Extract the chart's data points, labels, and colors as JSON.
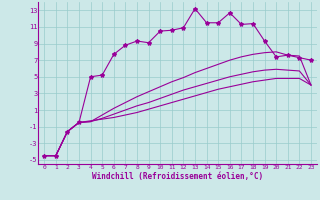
{
  "xlabel": "Windchill (Refroidissement éolien,°C)",
  "ylim": [
    -5.5,
    14
  ],
  "xlim": [
    -0.5,
    23.5
  ],
  "yticks": [
    -5,
    -3,
    -1,
    1,
    3,
    5,
    7,
    9,
    11,
    13
  ],
  "xticks": [
    0,
    1,
    2,
    3,
    4,
    5,
    6,
    7,
    8,
    9,
    10,
    11,
    12,
    13,
    14,
    15,
    16,
    17,
    18,
    19,
    20,
    21,
    22,
    23
  ],
  "bg_color": "#cce8e8",
  "line_color": "#990099",
  "grid_color": "#99cccc",
  "line1_x": [
    0,
    1,
    2,
    3,
    4,
    5,
    6,
    7,
    8,
    9,
    10,
    11,
    12,
    13,
    14,
    15,
    16,
    17,
    18,
    19,
    20,
    21,
    22,
    23
  ],
  "line1_y": [
    -4.5,
    -4.5,
    -1.6,
    -0.5,
    5.0,
    5.2,
    7.7,
    8.8,
    9.3,
    9.1,
    10.5,
    10.6,
    10.9,
    13.2,
    11.5,
    11.5,
    12.7,
    11.3,
    11.4,
    9.3,
    7.4,
    7.6,
    7.3,
    7.0
  ],
  "line2_x": [
    0,
    1,
    2,
    3,
    4,
    5,
    6,
    7,
    8,
    9,
    10,
    11,
    12,
    13,
    14,
    15,
    16,
    17,
    18,
    19,
    20,
    21,
    22,
    23
  ],
  "line2_y": [
    -4.5,
    -4.5,
    -1.6,
    -0.5,
    -0.4,
    0.4,
    1.2,
    1.9,
    2.6,
    3.2,
    3.8,
    4.4,
    4.9,
    5.5,
    6.0,
    6.5,
    7.0,
    7.4,
    7.7,
    7.9,
    8.0,
    7.6,
    7.5,
    4.0
  ],
  "line3_x": [
    0,
    1,
    2,
    3,
    4,
    5,
    6,
    7,
    8,
    9,
    10,
    11,
    12,
    13,
    14,
    15,
    16,
    17,
    18,
    19,
    20,
    21,
    22,
    23
  ],
  "line3_y": [
    -4.5,
    -4.5,
    -1.6,
    -0.5,
    -0.4,
    0.0,
    0.5,
    1.0,
    1.5,
    1.9,
    2.4,
    2.9,
    3.4,
    3.8,
    4.2,
    4.6,
    5.0,
    5.3,
    5.6,
    5.8,
    5.9,
    5.8,
    5.7,
    4.0
  ],
  "line4_x": [
    0,
    1,
    2,
    3,
    4,
    5,
    6,
    7,
    8,
    9,
    10,
    11,
    12,
    13,
    14,
    15,
    16,
    17,
    18,
    19,
    20,
    21,
    22,
    23
  ],
  "line4_y": [
    -4.5,
    -4.5,
    -1.6,
    -0.5,
    -0.3,
    -0.1,
    0.1,
    0.4,
    0.7,
    1.1,
    1.5,
    1.9,
    2.3,
    2.7,
    3.1,
    3.5,
    3.8,
    4.1,
    4.4,
    4.6,
    4.8,
    4.8,
    4.8,
    4.0
  ]
}
